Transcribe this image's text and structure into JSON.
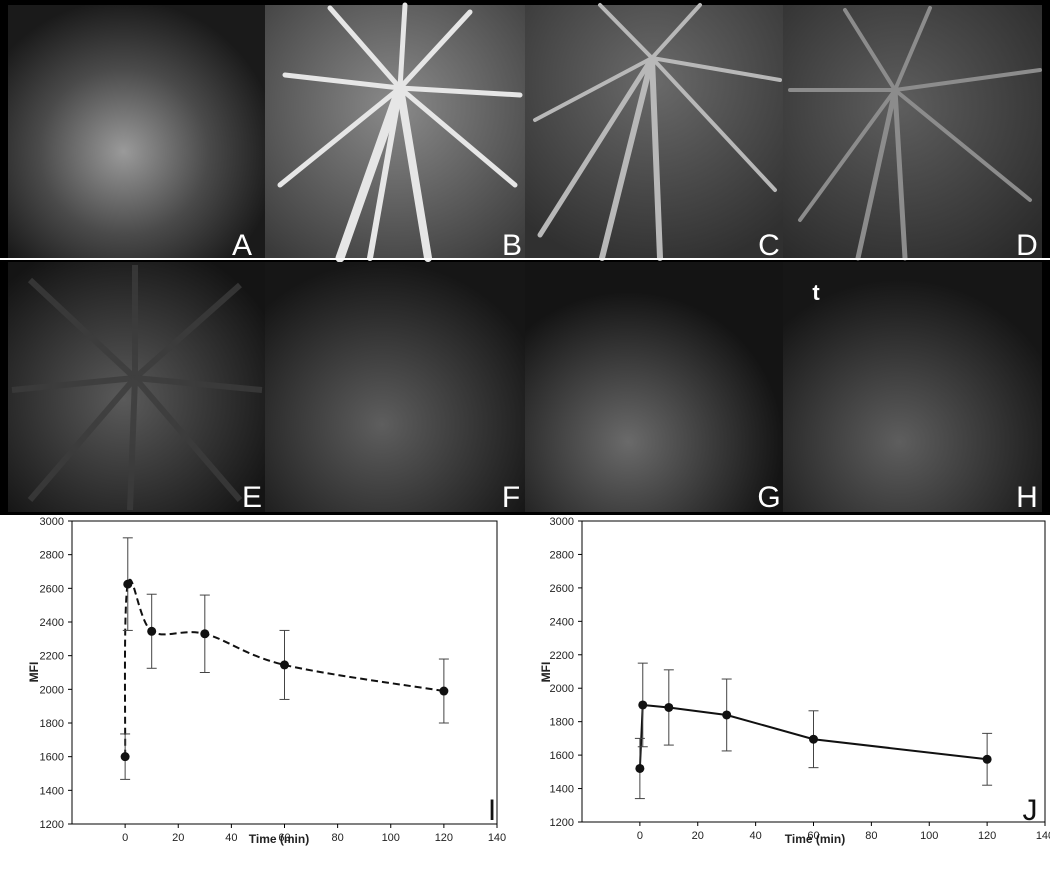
{
  "panels": [
    {
      "letter": "A"
    },
    {
      "letter": "B"
    },
    {
      "letter": "C"
    },
    {
      "letter": "D"
    },
    {
      "letter": "E"
    },
    {
      "letter": "F"
    },
    {
      "letter": "G"
    },
    {
      "letter": "H"
    }
  ],
  "time_arrow_label": "t",
  "colors": {
    "image_background": "#000000",
    "vessel": "#e8e8e8",
    "axis": "#000000",
    "series": "#111111"
  },
  "chart_data": [
    {
      "type": "line",
      "panel_letter": "I",
      "xlabel": "Time (min)",
      "ylabel": "MFI",
      "xlim": [
        -20,
        140
      ],
      "ylim": [
        1200,
        3000
      ],
      "xticks": [
        0,
        20,
        40,
        60,
        80,
        100,
        120,
        140
      ],
      "yticks": [
        1200,
        1400,
        1600,
        1800,
        2000,
        2200,
        2400,
        2600,
        2800,
        3000
      ],
      "line_style": "dashed-smooth",
      "series": [
        {
          "x": [
            0,
            1,
            10,
            30,
            60,
            120
          ],
          "y": [
            1600,
            2625,
            2345,
            2330,
            2145,
            1990
          ],
          "err": [
            135,
            275,
            220,
            230,
            205,
            190
          ]
        }
      ]
    },
    {
      "type": "line",
      "panel_letter": "J",
      "xlabel": "Time (min)",
      "ylabel": "MFI",
      "xlim": [
        -20,
        140
      ],
      "ylim": [
        1200,
        3000
      ],
      "xticks": [
        0,
        20,
        40,
        60,
        80,
        100,
        120,
        140
      ],
      "yticks": [
        1200,
        1400,
        1600,
        1800,
        2000,
        2200,
        2400,
        2600,
        2800,
        3000
      ],
      "line_style": "solid",
      "series": [
        {
          "x": [
            0,
            1,
            10,
            30,
            60,
            120
          ],
          "y": [
            1520,
            1900,
            1885,
            1840,
            1695,
            1575
          ],
          "err": [
            180,
            250,
            225,
            215,
            170,
            155
          ]
        }
      ]
    }
  ]
}
